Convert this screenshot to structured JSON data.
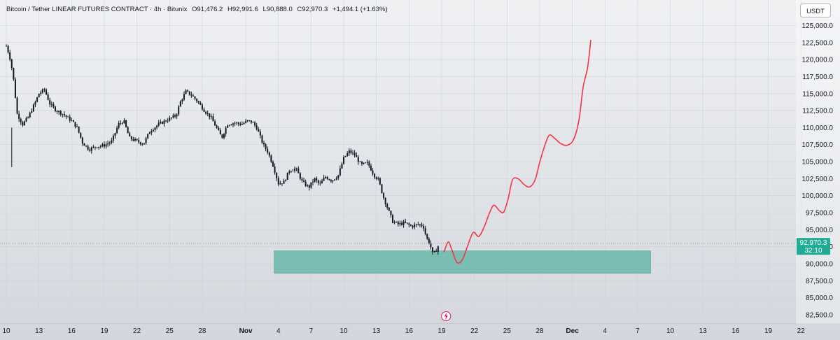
{
  "header": {
    "legend_title": "Bitcoin / Tether LINEAR FUTURES CONTRACT · 4h · Bitunix",
    "open_label": "O",
    "open": "91,476.2",
    "high_label": "H",
    "high": "92,991.6",
    "low_label": "L",
    "low": "90,888.0",
    "close_label": "C",
    "close": "92,970.3",
    "change": "+1,494.1 (+1.63%)"
  },
  "currency_button": "USDT",
  "price_tag": {
    "price": "92,970.3",
    "countdown": "32:10"
  },
  "colors": {
    "background": "#dfe2e7",
    "candle": "#131722",
    "forecast_line": "#f23645",
    "zone": "#6fb9ad",
    "price_tag": "#22ab94"
  },
  "icons": {
    "event_marker": "lightning-icon"
  },
  "chart_data": {
    "type": "candlestick",
    "title": "Bitcoin / Tether LINEAR FUTURES CONTRACT",
    "interval": "4h",
    "exchange": "Bitunix",
    "y_unit": "USDT",
    "ylim": [
      81500,
      127200
    ],
    "y_ticks": [
      82500,
      85000,
      87500,
      90000,
      92500,
      95000,
      97500,
      100000,
      102500,
      105000,
      107500,
      110000,
      112500,
      115000,
      117500,
      120000,
      122500,
      125000
    ],
    "y_tick_labels": [
      "82,500.0",
      "85,000.0",
      "87,500.0",
      "90,000.0",
      "92,500.0",
      "95,000.0",
      "97,500.0",
      "100,000.0",
      "102,500.0",
      "105,000.0",
      "107,500.0",
      "110,000.0",
      "112,500.0",
      "115,000.0",
      "117,500.0",
      "120,000.0",
      "122,500.0",
      "125,000.0"
    ],
    "x_ticks": [
      {
        "day": 10,
        "label": "10",
        "bold": false
      },
      {
        "day": 13,
        "label": "13",
        "bold": false
      },
      {
        "day": 16,
        "label": "16",
        "bold": false
      },
      {
        "day": 19,
        "label": "19",
        "bold": false
      },
      {
        "day": 22,
        "label": "22",
        "bold": false
      },
      {
        "day": 25,
        "label": "25",
        "bold": false
      },
      {
        "day": 28,
        "label": "28",
        "bold": false
      },
      {
        "day": 32,
        "label": "Nov",
        "bold": true
      },
      {
        "day": 35,
        "label": "4",
        "bold": false
      },
      {
        "day": 38,
        "label": "7",
        "bold": false
      },
      {
        "day": 41,
        "label": "10",
        "bold": false
      },
      {
        "day": 44,
        "label": "13",
        "bold": false
      },
      {
        "day": 47,
        "label": "16",
        "bold": false
      },
      {
        "day": 50,
        "label": "19",
        "bold": false
      },
      {
        "day": 53,
        "label": "22",
        "bold": false
      },
      {
        "day": 56,
        "label": "25",
        "bold": false
      },
      {
        "day": 59,
        "label": "28",
        "bold": false
      },
      {
        "day": 62,
        "label": "Dec",
        "bold": true
      },
      {
        "day": 65,
        "label": "4",
        "bold": false
      },
      {
        "day": 68,
        "label": "7",
        "bold": false
      },
      {
        "day": 71,
        "label": "10",
        "bold": false
      },
      {
        "day": 74,
        "label": "13",
        "bold": false
      },
      {
        "day": 77,
        "label": "16",
        "bold": false
      },
      {
        "day": 80,
        "label": "19",
        "bold": false
      },
      {
        "day": 83,
        "label": "22",
        "bold": false
      }
    ],
    "x_range_days": [
      10,
      84
    ],
    "price_path": [
      [
        10.0,
        122000
      ],
      [
        10.3,
        120500
      ],
      [
        10.6,
        118000
      ],
      [
        11.0,
        112000
      ],
      [
        11.5,
        110500
      ],
      [
        12.0,
        111500
      ],
      [
        12.6,
        113500
      ],
      [
        13.0,
        115000
      ],
      [
        13.5,
        115600
      ],
      [
        14.0,
        113500
      ],
      [
        14.6,
        112500
      ],
      [
        15.2,
        112000
      ],
      [
        16.0,
        111000
      ],
      [
        16.5,
        110000
      ],
      [
        17.0,
        107800
      ],
      [
        17.6,
        106800
      ],
      [
        18.2,
        107200
      ],
      [
        19.0,
        107400
      ],
      [
        19.7,
        108000
      ],
      [
        20.3,
        110500
      ],
      [
        20.8,
        111000
      ],
      [
        21.3,
        108500
      ],
      [
        22.0,
        108000
      ],
      [
        22.6,
        107600
      ],
      [
        23.2,
        109500
      ],
      [
        24.0,
        110500
      ],
      [
        25.0,
        111300
      ],
      [
        25.6,
        111800
      ],
      [
        26.0,
        113800
      ],
      [
        26.5,
        115300
      ],
      [
        27.0,
        114800
      ],
      [
        27.6,
        113800
      ],
      [
        28.2,
        112500
      ],
      [
        28.8,
        111500
      ],
      [
        29.3,
        110000
      ],
      [
        29.8,
        108500
      ],
      [
        30.3,
        110500
      ],
      [
        31.0,
        110700
      ],
      [
        31.6,
        110500
      ],
      [
        32.2,
        111000
      ],
      [
        32.6,
        110800
      ],
      [
        33.0,
        110000
      ],
      [
        33.6,
        107500
      ],
      [
        34.0,
        106500
      ],
      [
        34.5,
        104500
      ],
      [
        35.0,
        101800
      ],
      [
        35.5,
        102000
      ],
      [
        36.0,
        103700
      ],
      [
        36.6,
        104000
      ],
      [
        37.2,
        102000
      ],
      [
        37.8,
        101200
      ],
      [
        38.3,
        102500
      ],
      [
        38.8,
        101600
      ],
      [
        39.3,
        102800
      ],
      [
        39.9,
        102200
      ],
      [
        40.5,
        103000
      ],
      [
        41.0,
        105500
      ],
      [
        41.5,
        106500
      ],
      [
        42.0,
        106000
      ],
      [
        42.6,
        104500
      ],
      [
        43.2,
        104800
      ],
      [
        43.8,
        103000
      ],
      [
        44.2,
        102300
      ],
      [
        44.6,
        100000
      ],
      [
        45.0,
        98300
      ],
      [
        45.5,
        96200
      ],
      [
        46.0,
        95800
      ],
      [
        46.6,
        96000
      ],
      [
        47.2,
        95500
      ],
      [
        47.8,
        95800
      ],
      [
        48.3,
        95600
      ],
      [
        48.6,
        93800
      ],
      [
        48.9,
        93000
      ],
      [
        49.2,
        91300
      ],
      [
        49.5,
        92000
      ],
      [
        49.8,
        93000
      ]
    ],
    "demand_zone": {
      "x_start_day": 34.6,
      "x_end_day": 69.2,
      "y_low": 88600,
      "y_high": 91900
    },
    "forecast_path": [
      [
        50.2,
        91700
      ],
      [
        50.6,
        93200
      ],
      [
        50.9,
        92200
      ],
      [
        51.4,
        90200
      ],
      [
        51.9,
        90600
      ],
      [
        52.4,
        92700
      ],
      [
        52.9,
        94600
      ],
      [
        53.4,
        94000
      ],
      [
        53.9,
        95400
      ],
      [
        54.4,
        97500
      ],
      [
        54.8,
        98600
      ],
      [
        55.3,
        97800
      ],
      [
        55.7,
        97600
      ],
      [
        56.1,
        99500
      ],
      [
        56.5,
        102300
      ],
      [
        57.0,
        102500
      ],
      [
        57.6,
        101600
      ],
      [
        58.1,
        101300
      ],
      [
        58.6,
        102400
      ],
      [
        59.0,
        104900
      ],
      [
        59.5,
        107500
      ],
      [
        59.9,
        108900
      ],
      [
        60.4,
        108400
      ],
      [
        60.9,
        107700
      ],
      [
        61.5,
        107400
      ],
      [
        62.1,
        108200
      ],
      [
        62.6,
        111000
      ],
      [
        63.0,
        116000
      ],
      [
        63.4,
        118800
      ],
      [
        63.7,
        122900
      ]
    ],
    "current_price": 92970.3,
    "current_price_line": "dotted",
    "event_marker_day": 50.4
  }
}
